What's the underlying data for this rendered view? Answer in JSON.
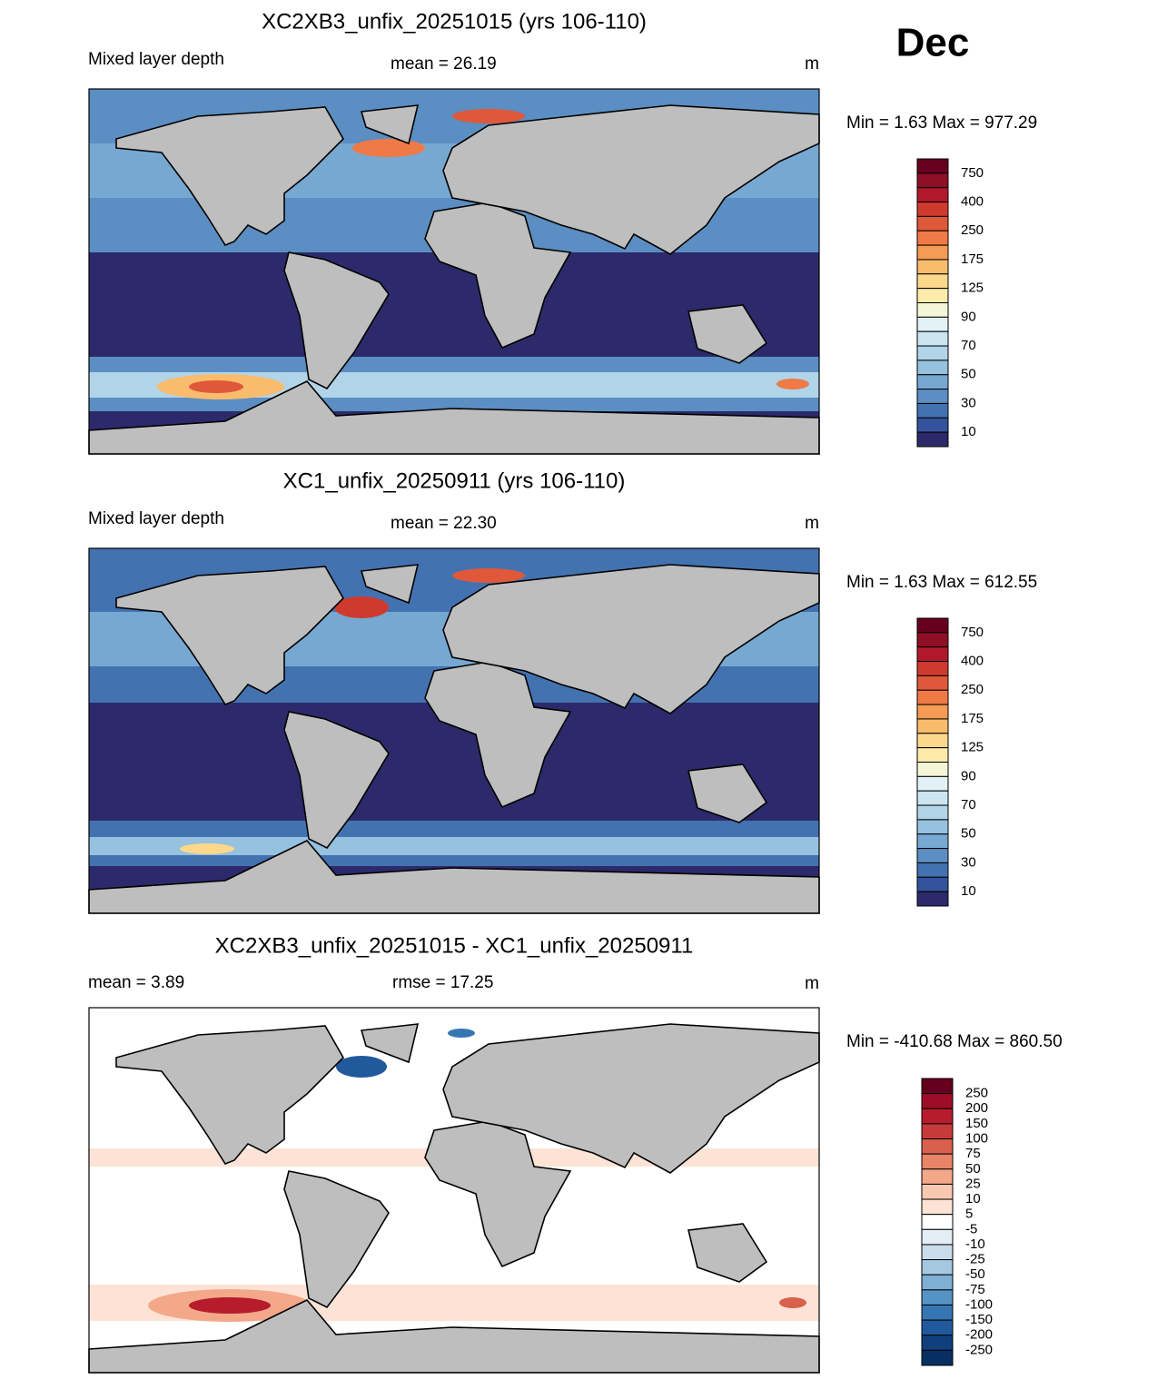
{
  "month": "Dec",
  "panels": [
    {
      "title": "XC2XB3_unfix_20251015 (yrs 106-110)",
      "left_label": "Mixed layer depth",
      "center_label": "mean =  26.19",
      "units": "m",
      "minmax": "Min =   1.63 Max = 977.29",
      "colorbar": {
        "labels": [
          750,
          400,
          250,
          175,
          125,
          90,
          70,
          50,
          30,
          10
        ],
        "colors": [
          "#67001f",
          "#8e0f26",
          "#b2182b",
          "#cf3a2f",
          "#e0583a",
          "#ef7a45",
          "#f59b55",
          "#f9bb6c",
          "#fdd78b",
          "#fcebaa",
          "#f3f7d8",
          "#e2f1f5",
          "#cce5f0",
          "#b2d4e8",
          "#96c1df",
          "#77a8d1",
          "#5b8ec2",
          "#4372b1",
          "#34539c",
          "#2c2a6a"
        ]
      }
    },
    {
      "title": "XC1_unfix_20250911 (yrs 106-110)",
      "left_label": "Mixed layer depth",
      "center_label": "mean =  22.30",
      "units": "m",
      "minmax": "Min =   1.63 Max = 612.55",
      "colorbar": {
        "labels": [
          750,
          400,
          250,
          175,
          125,
          90,
          70,
          50,
          30,
          10
        ],
        "colors": [
          "#67001f",
          "#8e0f26",
          "#b2182b",
          "#cf3a2f",
          "#e0583a",
          "#ef7a45",
          "#f59b55",
          "#f9bb6c",
          "#fdd78b",
          "#fcebaa",
          "#f3f7d8",
          "#e2f1f5",
          "#cce5f0",
          "#b2d4e8",
          "#96c1df",
          "#77a8d1",
          "#5b8ec2",
          "#4372b1",
          "#34539c",
          "#2c2a6a"
        ]
      }
    },
    {
      "title": "XC2XB3_unfix_20251015 - XC1_unfix_20250911",
      "left_label": "mean =   3.89",
      "center_label": "rmse =  17.25",
      "units": "m",
      "minmax": "Min = -410.68 Max = 860.50",
      "colorbar": {
        "labels": [
          250,
          200,
          150,
          100,
          75,
          50,
          25,
          10,
          5,
          -5,
          -10,
          -25,
          -50,
          -75,
          -100,
          -150,
          -200,
          -250
        ],
        "colors": [
          "#67001f",
          "#9e0d27",
          "#b71c2c",
          "#c73a3a",
          "#d8604c",
          "#e88468",
          "#f3a88a",
          "#f9c8b0",
          "#fde3d5",
          "#ffffff",
          "#e4eef5",
          "#c8dceb",
          "#a5c8e1",
          "#7fb0d4",
          "#5593c4",
          "#3576b2",
          "#215a9c",
          "#0f3f7c",
          "#053061"
        ]
      }
    }
  ]
}
